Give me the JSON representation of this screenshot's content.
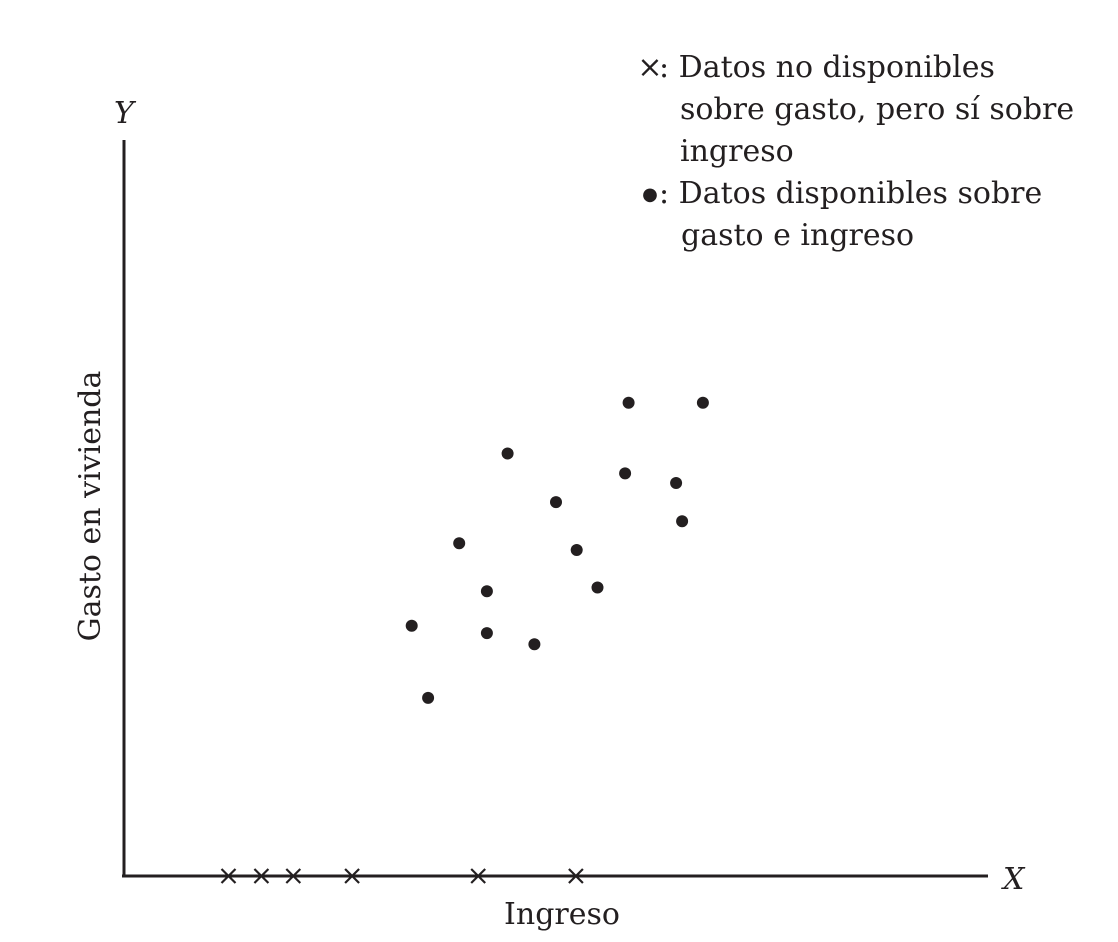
{
  "chart_data": {
    "type": "scatter",
    "x_axis_symbol": "X",
    "y_axis_symbol": "Y",
    "xlabel": "Ingreso",
    "ylabel": "Gasto en vivienda",
    "xlim": [
      0,
      100
    ],
    "ylim": [
      0,
      100
    ],
    "grid": false,
    "legend_position": "top-right",
    "legend": [
      {
        "marker": "cross",
        "symbol": "×",
        "lines": [
          ": Datos no disponibles",
          "sobre gasto, pero sí sobre",
          "ingreso"
        ]
      },
      {
        "marker": "dot",
        "symbol": "●",
        "lines": [
          ": Datos disponibles sobre",
          "gasto e ingreso"
        ]
      }
    ],
    "series": [
      {
        "marker": "dot",
        "points": [
          {
            "x": 33.3,
            "y": 34.0
          },
          {
            "x": 35.2,
            "y": 24.2
          },
          {
            "x": 38.8,
            "y": 45.2
          },
          {
            "x": 42.0,
            "y": 38.7
          },
          {
            "x": 42.0,
            "y": 33.0
          },
          {
            "x": 44.4,
            "y": 57.4
          },
          {
            "x": 47.5,
            "y": 31.5
          },
          {
            "x": 50.0,
            "y": 50.8
          },
          {
            "x": 52.4,
            "y": 44.3
          },
          {
            "x": 54.8,
            "y": 39.2
          },
          {
            "x": 58.0,
            "y": 54.7
          },
          {
            "x": 58.4,
            "y": 64.3
          },
          {
            "x": 63.9,
            "y": 53.4
          },
          {
            "x": 64.6,
            "y": 48.2
          },
          {
            "x": 67.0,
            "y": 64.3
          }
        ]
      },
      {
        "marker": "cross",
        "points": [
          {
            "x": 12.1,
            "y": 0
          },
          {
            "x": 15.9,
            "y": 0
          },
          {
            "x": 19.6,
            "y": 0
          },
          {
            "x": 26.4,
            "y": 0
          },
          {
            "x": 41.0,
            "y": 0
          },
          {
            "x": 52.3,
            "y": 0
          }
        ]
      }
    ]
  }
}
